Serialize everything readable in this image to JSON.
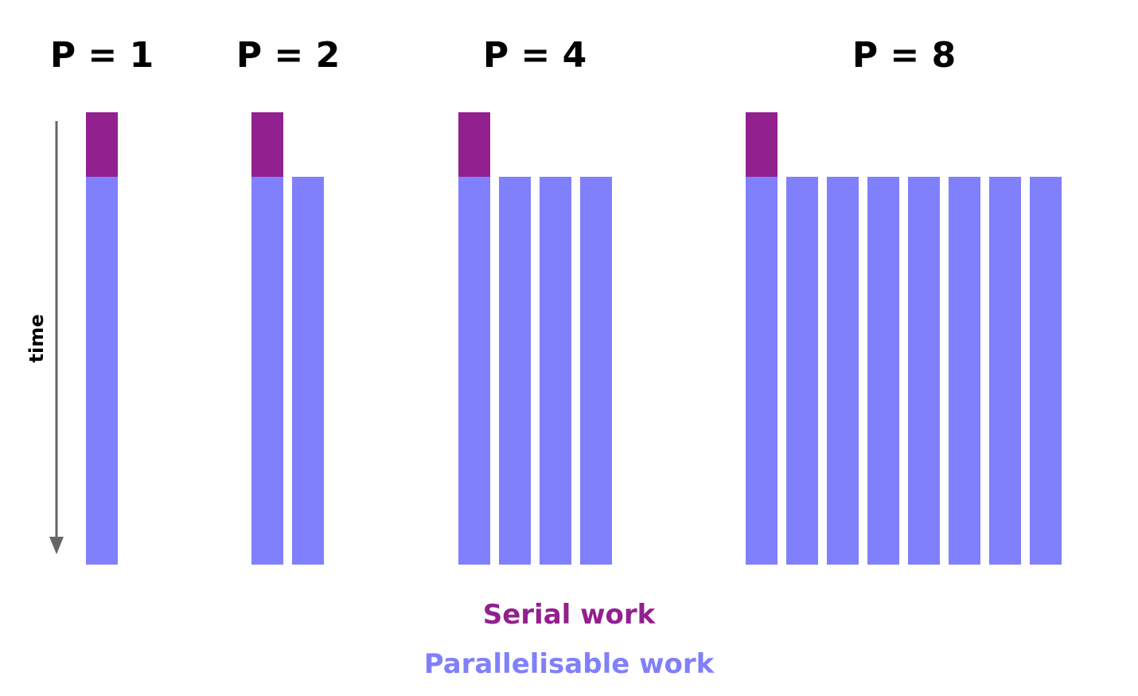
{
  "groups": [
    {
      "title": "P = 1",
      "processors": 1
    },
    {
      "title": "P = 2",
      "processors": 2
    },
    {
      "title": "P = 4",
      "processors": 4
    },
    {
      "title": "P = 8",
      "processors": 8
    }
  ],
  "axis": {
    "label": "time"
  },
  "legend": {
    "serial_label": "Serial work",
    "parallel_label": "Parallelisable work"
  },
  "colors": {
    "serial": "#92208f",
    "parallel": "#8080fc",
    "axis": "#666666",
    "background": "#ffffff"
  }
}
